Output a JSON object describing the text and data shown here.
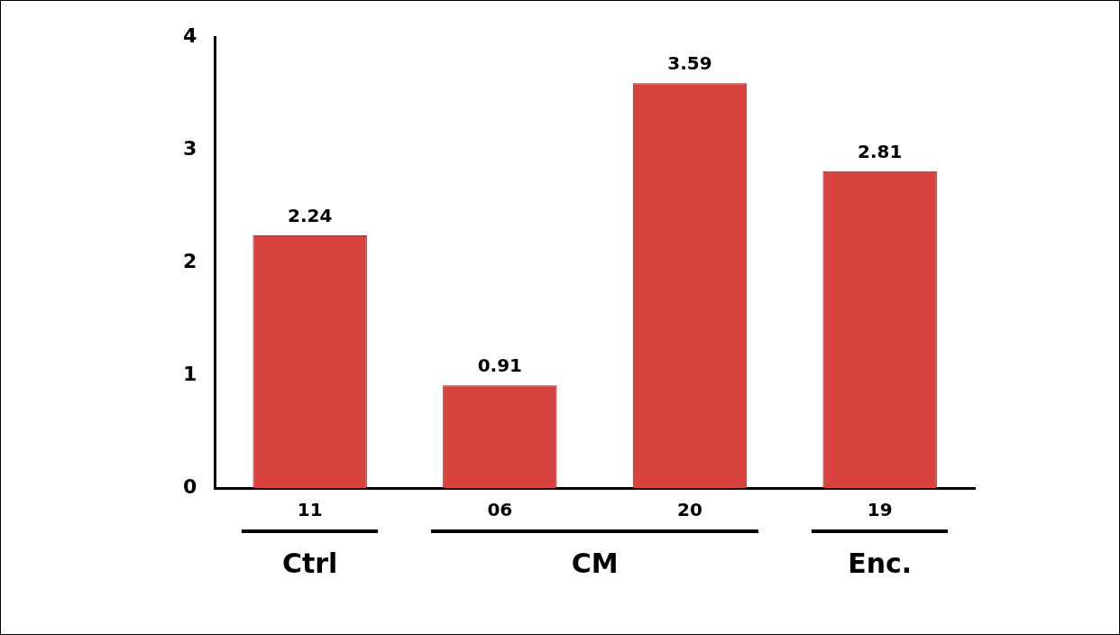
{
  "chart_data": {
    "type": "bar",
    "categories": [
      "11",
      "06",
      "20",
      "19"
    ],
    "values": [
      2.24,
      0.91,
      3.59,
      2.81
    ],
    "color": "#d9433f",
    "ylim": [
      0,
      4
    ],
    "yticks": [
      0,
      1,
      2,
      3,
      4
    ],
    "grid": false,
    "legend": false,
    "data_labels": true,
    "annotations": [
      "Ctrl",
      "CM",
      "Enc."
    ]
  }
}
